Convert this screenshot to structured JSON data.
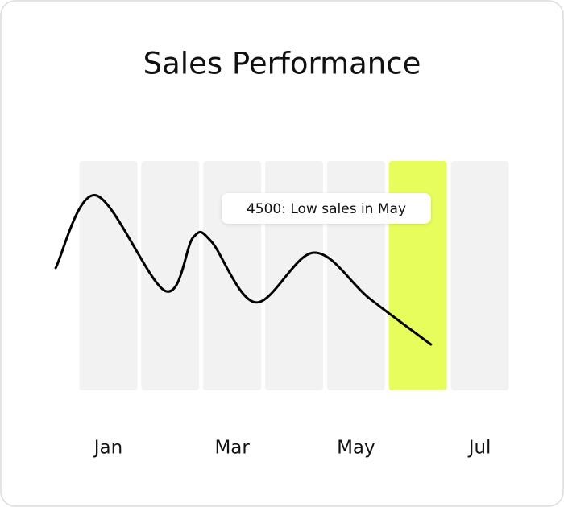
{
  "chart_data": {
    "type": "line",
    "title": "Sales Performance",
    "categories": [
      "Jan",
      null,
      "Mar",
      null,
      "May",
      null,
      "Jul"
    ],
    "column_color": "#f2f2f2",
    "highlight_index": 5,
    "highlight_color": "#e6fd5c",
    "annotation": "4500: Low sales in May",
    "xlim": [
      -0.5,
      6.5
    ],
    "ylim": [
      3000,
      9000
    ],
    "series": [
      {
        "color": "#000000",
        "x": [
          -0.85,
          -0.2,
          0.92,
          1.37,
          1.66,
          2.38,
          3.32,
          4.22,
          5.21
        ],
        "values": [
          6200,
          8100,
          5600,
          7000,
          6900,
          5300,
          6600,
          5400,
          4200
        ]
      }
    ]
  }
}
